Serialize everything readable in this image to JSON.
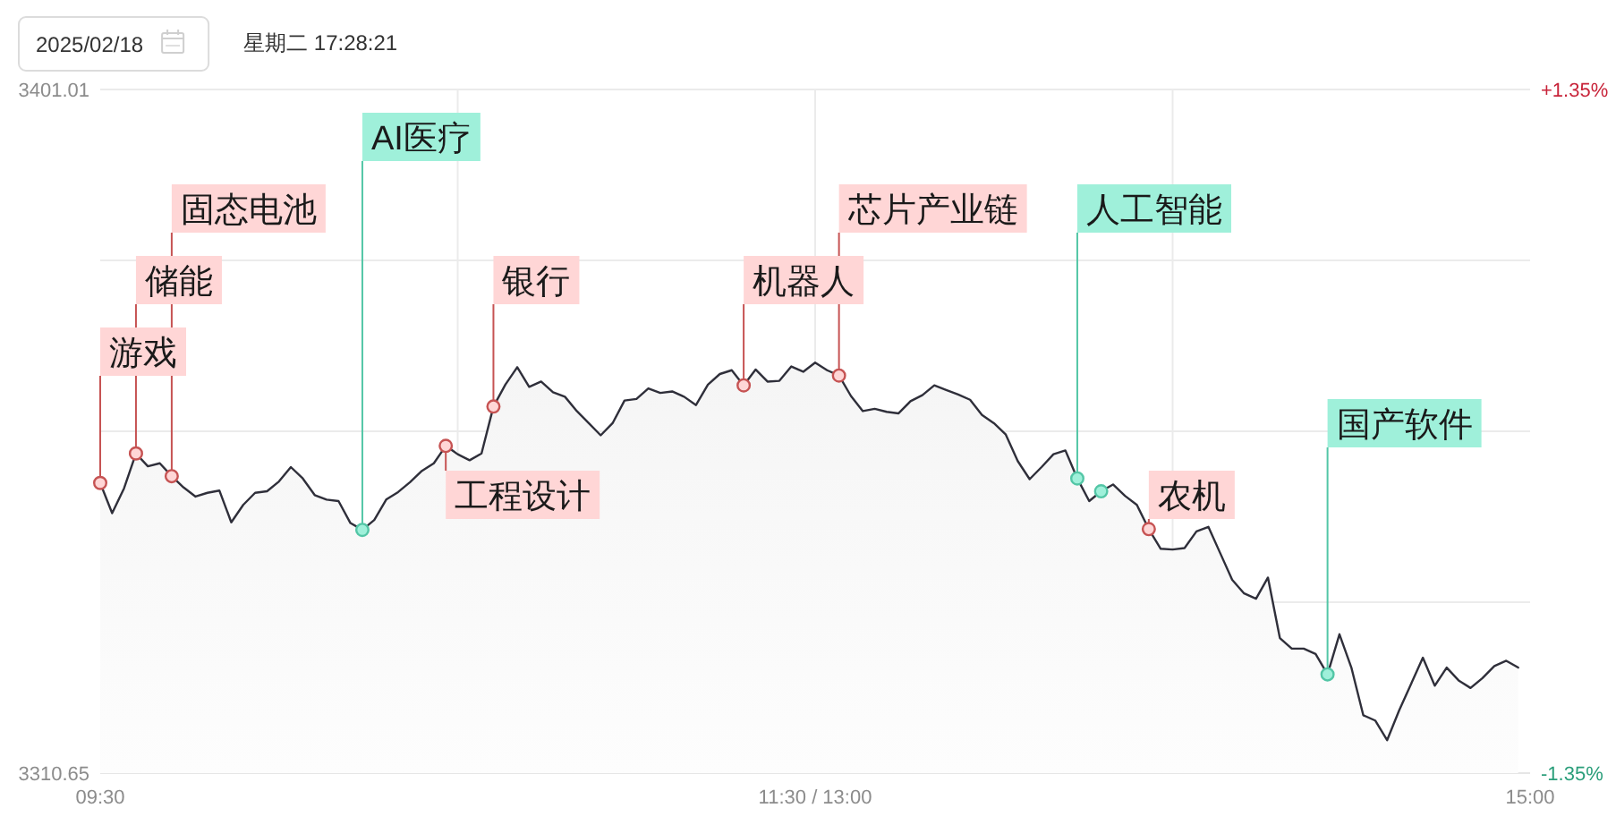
{
  "chart_data": {
    "type": "area",
    "title": "2025/02/18",
    "subtitle": "星期二 17:28:21",
    "categories": [
      "09:30",
      null,
      null,
      null,
      null,
      null,
      null,
      null,
      null,
      null,
      null,
      null,
      null,
      null,
      null,
      null,
      null,
      null,
      null,
      null,
      null,
      null,
      null,
      null,
      null,
      null,
      null,
      null,
      null,
      null,
      null,
      null,
      null,
      null,
      null,
      null,
      null,
      null,
      null,
      null,
      null,
      null,
      null,
      null,
      null,
      null,
      null,
      null,
      null,
      null,
      null,
      null,
      null,
      null,
      null,
      null,
      null,
      null,
      null,
      null,
      "11:30 / 13:00",
      null,
      null,
      null,
      null,
      null,
      null,
      null,
      null,
      null,
      null,
      null,
      null,
      null,
      null,
      null,
      null,
      null,
      null,
      null,
      null,
      null,
      null,
      null,
      null,
      null,
      null,
      null,
      null,
      null,
      null,
      null,
      null,
      null,
      null,
      null,
      null,
      null,
      null,
      null,
      null,
      null,
      null,
      null,
      null,
      null,
      null,
      null,
      null,
      null,
      null,
      null,
      null,
      null,
      null,
      null,
      null,
      null,
      null,
      null,
      "15:00"
    ],
    "ylim": [
      3310.65,
      3401.01
    ],
    "yticks": [
      3310.65,
      {
        "value": 3333.24,
        "label": null
      },
      {
        "value": 3355.83,
        "label": null
      },
      {
        "value": 3378.42,
        "label": null
      },
      3401.01
    ],
    "y2lim": [
      -1.35,
      1.35
    ],
    "y2ticks": [
      {
        "value": -1.35,
        "label": "-1.35%"
      },
      {
        "value": 1.35,
        "label": "+1.35%"
      }
    ],
    "grid": true,
    "series": [
      {
        "color": "#2f2f3a",
        "values": [
          3349.0,
          3345.0,
          3348.3,
          3352.9,
          3351.2,
          3351.6,
          3349.9,
          3348.4,
          3347.2,
          3347.7,
          3348.0,
          3343.8,
          3346.1,
          3347.7,
          3347.9,
          3349.2,
          3351.1,
          3349.6,
          3347.4,
          3346.8,
          3346.6,
          3343.7,
          3342.8,
          3344.1,
          3346.8,
          3347.8,
          3349.1,
          3350.6,
          3351.6,
          3353.9,
          3352.8,
          3352.0,
          3352.9,
          3359.1,
          3362.0,
          3364.3,
          3361.7,
          3362.4,
          3361.0,
          3360.4,
          3358.5,
          3356.9,
          3355.3,
          3356.9,
          3359.9,
          3360.1,
          3361.5,
          3360.9,
          3361.1,
          3360.4,
          3359.3,
          3362.0,
          3363.4,
          3363.9,
          3361.9,
          3364.0,
          3362.4,
          3362.5,
          3364.4,
          3363.7,
          3364.9,
          3363.9,
          3363.2,
          3360.5,
          3358.5,
          3358.8,
          3358.4,
          3358.2,
          3359.8,
          3360.6,
          3361.9,
          3361.3,
          3360.7,
          3360.0,
          3358.0,
          3356.9,
          3355.4,
          3351.9,
          3349.5,
          3351.1,
          3352.8,
          3353.3,
          3349.6,
          3346.6,
          3347.9,
          3348.8,
          3347.3,
          3346.1,
          3342.9,
          3340.3,
          3340.2,
          3340.4,
          3342.6,
          3343.2,
          3339.7,
          3336.2,
          3334.4,
          3333.7,
          3336.5,
          3328.5,
          3327.1,
          3327.1,
          3326.4,
          3323.7,
          3329.0,
          3324.6,
          3318.3,
          3317.6,
          3315.0,
          3318.9,
          3322.4,
          3325.9,
          3322.2,
          3324.6,
          3322.9,
          3321.9,
          3323.2,
          3324.8,
          3325.5,
          3324.6,
          null
        ]
      },
      {
        "type": "scatter",
        "color": "#ffd6d6",
        "values": [
          3349.0,
          null,
          null,
          3352.9,
          null,
          null,
          3349.9,
          null,
          null,
          null,
          null,
          null,
          null,
          null,
          null,
          null,
          null,
          null,
          null,
          null,
          null,
          null,
          null,
          null,
          null,
          null,
          null,
          null,
          null,
          3353.9,
          null,
          null,
          null,
          3359.1,
          null,
          null,
          null,
          null,
          null,
          null,
          null,
          null,
          null,
          null,
          null,
          null,
          null,
          null,
          null,
          null,
          null,
          null,
          null,
          null,
          3361.9,
          null,
          null,
          null,
          null,
          null,
          null,
          null,
          3363.2,
          null,
          null,
          null,
          null,
          null,
          null,
          null,
          null,
          null,
          null,
          null,
          null,
          null,
          null,
          null,
          null,
          null,
          null,
          null,
          null,
          null,
          null,
          null,
          null,
          null,
          3342.9,
          null,
          null,
          null,
          null,
          null,
          null,
          null,
          null,
          null,
          null,
          null,
          null,
          null,
          null,
          null,
          null,
          null,
          null,
          null,
          null,
          null,
          null,
          null,
          null,
          null,
          null,
          null,
          null,
          null,
          null,
          null,
          null
        ],
        "value_labels": [
          "游戏",
          null,
          null,
          "储能",
          null,
          null,
          "固态电池",
          null,
          null,
          null,
          null,
          null,
          null,
          null,
          null,
          null,
          null,
          null,
          null,
          null,
          null,
          null,
          null,
          null,
          null,
          null,
          null,
          null,
          null,
          "工程设计",
          null,
          null,
          null,
          "银行",
          null,
          null,
          null,
          null,
          null,
          null,
          null,
          null,
          null,
          null,
          null,
          null,
          null,
          null,
          null,
          null,
          null,
          null,
          null,
          null,
          "机器人",
          null,
          null,
          null,
          null,
          null,
          null,
          null,
          "芯片产业链",
          null,
          null,
          null,
          null,
          null,
          null,
          null,
          null,
          null,
          null,
          null,
          null,
          null,
          null,
          null,
          null,
          null,
          null,
          null,
          null,
          null,
          null,
          null,
          null,
          null,
          "农机",
          null,
          null,
          null,
          null,
          null,
          null,
          null,
          null,
          null,
          null,
          null,
          null,
          null,
          null,
          null,
          null,
          null,
          null,
          null,
          null,
          null,
          null,
          null,
          null,
          null,
          null,
          null,
          null,
          null,
          null,
          null,
          null
        ]
      },
      {
        "type": "scatter",
        "color": "#9ff0da",
        "values": [
          null,
          null,
          null,
          null,
          null,
          null,
          null,
          null,
          null,
          null,
          null,
          null,
          null,
          null,
          null,
          null,
          null,
          null,
          null,
          null,
          null,
          null,
          3342.8,
          null,
          null,
          null,
          null,
          null,
          null,
          null,
          null,
          null,
          null,
          null,
          null,
          null,
          null,
          null,
          null,
          null,
          null,
          null,
          null,
          null,
          null,
          null,
          null,
          null,
          null,
          null,
          null,
          null,
          null,
          null,
          null,
          null,
          null,
          null,
          null,
          null,
          null,
          null,
          null,
          null,
          null,
          null,
          null,
          null,
          null,
          null,
          null,
          null,
          null,
          null,
          null,
          null,
          null,
          null,
          null,
          null,
          null,
          null,
          3349.6,
          null,
          3347.9,
          null,
          null,
          null,
          null,
          null,
          null,
          null,
          null,
          null,
          null,
          null,
          null,
          null,
          null,
          null,
          null,
          null,
          null,
          3323.7,
          null,
          null,
          null,
          null,
          null,
          null,
          null,
          null,
          null,
          null,
          null,
          null,
          null,
          null,
          null,
          null,
          null
        ],
        "value_labels": [
          null,
          null,
          null,
          null,
          null,
          null,
          null,
          null,
          null,
          null,
          null,
          null,
          null,
          null,
          null,
          null,
          null,
          null,
          null,
          null,
          null,
          null,
          "AI医疗",
          null,
          null,
          null,
          null,
          null,
          null,
          null,
          null,
          null,
          null,
          null,
          null,
          null,
          null,
          null,
          null,
          null,
          null,
          null,
          null,
          null,
          null,
          null,
          null,
          null,
          null,
          null,
          null,
          null,
          null,
          null,
          null,
          null,
          null,
          null,
          null,
          null,
          null,
          null,
          null,
          null,
          null,
          null,
          null,
          null,
          null,
          null,
          null,
          null,
          null,
          null,
          null,
          null,
          null,
          null,
          null,
          null,
          null,
          null,
          "人工智能",
          null,
          null,
          null,
          null,
          null,
          null,
          null,
          null,
          null,
          null,
          null,
          null,
          null,
          null,
          null,
          null,
          null,
          null,
          null,
          null,
          "国产软件",
          null,
          null,
          null,
          null,
          null,
          null,
          null,
          null,
          null,
          null,
          null,
          null,
          null,
          null,
          null,
          null,
          null
        ]
      }
    ]
  }
}
